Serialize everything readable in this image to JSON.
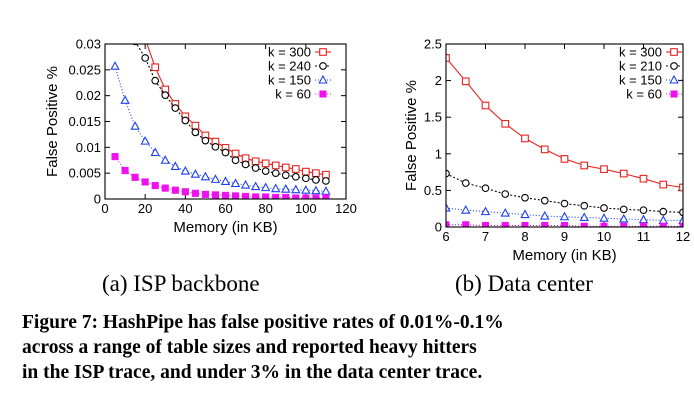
{
  "chart_data": [
    {
      "type": "line",
      "xlabel": "Memory (in KB)",
      "ylabel": "False Positive %",
      "xlim": [
        0,
        120
      ],
      "ylim": [
        0,
        0.03
      ],
      "xticks": [
        "0",
        "20",
        "40",
        "60",
        "80",
        "100",
        "120"
      ],
      "yticks": [
        "0",
        "0.005",
        "0.01",
        "0.015",
        "0.02",
        "0.025",
        "0.03"
      ],
      "legend": "top-right",
      "series": [
        {
          "name": "k = 300",
          "color": "#e8221e",
          "marker": "square-open",
          "dash": "solid",
          "x": [
            20,
            25,
            30,
            35,
            40,
            45,
            50,
            55,
            60,
            65,
            70,
            75,
            80,
            85,
            90,
            95,
            100,
            105,
            110
          ],
          "y": [
            0.031,
            0.0255,
            0.0212,
            0.0184,
            0.016,
            0.0142,
            0.0123,
            0.0111,
            0.0099,
            0.0088,
            0.0079,
            0.0073,
            0.0069,
            0.0065,
            0.0061,
            0.0058,
            0.0053,
            0.005,
            0.0047
          ]
        },
        {
          "name": "k = 240",
          "color": "#000000",
          "marker": "circle-open",
          "dash": "2,2",
          "x": [
            15,
            20,
            25,
            30,
            35,
            40,
            45,
            50,
            55,
            60,
            65,
            70,
            75,
            80,
            85,
            90,
            95,
            100,
            105,
            110
          ],
          "y": [
            0.0305,
            0.0273,
            0.0229,
            0.0201,
            0.0176,
            0.0152,
            0.0129,
            0.0113,
            0.0101,
            0.009,
            0.0075,
            0.0067,
            0.006,
            0.0054,
            0.005,
            0.0046,
            0.0043,
            0.004,
            0.0037,
            0.0035
          ]
        },
        {
          "name": "k = 150",
          "color": "#1c3ff2",
          "marker": "triangle-open",
          "dash": "1,2",
          "x": [
            5,
            10,
            15,
            20,
            25,
            30,
            35,
            40,
            45,
            50,
            55,
            60,
            65,
            70,
            75,
            80,
            85,
            90,
            95,
            100,
            105,
            110
          ],
          "y": [
            0.0257,
            0.0191,
            0.0141,
            0.0112,
            0.009,
            0.0075,
            0.0063,
            0.0054,
            0.0048,
            0.0043,
            0.0038,
            0.0034,
            0.003,
            0.0027,
            0.0024,
            0.0022,
            0.002,
            0.0019,
            0.0018,
            0.0017,
            0.0016,
            0.0015
          ]
        },
        {
          "name": "k = 60",
          "color": "#ee11ee",
          "marker": "square-filled",
          "dash": "1,2",
          "x": [
            5,
            10,
            15,
            20,
            25,
            30,
            35,
            40,
            45,
            50,
            55,
            60,
            65,
            70,
            75,
            80,
            85,
            90,
            95,
            100,
            105,
            110
          ],
          "y": [
            0.0082,
            0.0055,
            0.0042,
            0.0033,
            0.0026,
            0.0021,
            0.0017,
            0.0014,
            0.0011,
            0.0009,
            0.0008,
            0.0007,
            0.0006,
            0.0005,
            0.0004,
            0.0004,
            0.0003,
            0.0003,
            0.0002,
            0.0002,
            0.0002,
            0.0002
          ]
        }
      ]
    },
    {
      "type": "line",
      "xlabel": "Memory (in KB)",
      "ylabel": "False Positive %",
      "xlim": [
        6,
        12
      ],
      "ylim": [
        0,
        2.5
      ],
      "xticks": [
        "6",
        "7",
        "8",
        "9",
        "10",
        "11",
        "12"
      ],
      "yticks": [
        "0",
        "0.5",
        "1",
        "1.5",
        "2",
        "2.5"
      ],
      "legend": "top-right",
      "series": [
        {
          "name": "k = 300",
          "color": "#e8221e",
          "marker": "square-open",
          "dash": "solid",
          "x": [
            6,
            6.5,
            7,
            7.5,
            8,
            8.5,
            9,
            9.5,
            10,
            10.5,
            11,
            11.5,
            12
          ],
          "y": [
            2.31,
            1.99,
            1.66,
            1.41,
            1.21,
            1.06,
            0.93,
            0.84,
            0.79,
            0.73,
            0.66,
            0.58,
            0.54
          ]
        },
        {
          "name": "k = 210",
          "color": "#000000",
          "marker": "circle-open",
          "dash": "2,2",
          "x": [
            6,
            6.5,
            7,
            7.5,
            8,
            8.5,
            9,
            9.5,
            10,
            10.5,
            11,
            11.5,
            12
          ],
          "y": [
            0.73,
            0.6,
            0.53,
            0.45,
            0.4,
            0.36,
            0.32,
            0.29,
            0.26,
            0.24,
            0.23,
            0.21,
            0.2
          ]
        },
        {
          "name": "k = 150",
          "color": "#1c3ff2",
          "marker": "triangle-open",
          "dash": "1,2",
          "x": [
            6,
            6.5,
            7,
            7.5,
            8,
            8.5,
            9,
            9.5,
            10,
            10.5,
            11,
            11.5,
            12
          ],
          "y": [
            0.26,
            0.23,
            0.21,
            0.19,
            0.17,
            0.15,
            0.14,
            0.13,
            0.12,
            0.11,
            0.1,
            0.09,
            0.09
          ]
        },
        {
          "name": "k = 60",
          "color": "#ee11ee",
          "marker": "square-filled",
          "dash": "1,2",
          "x": [
            6,
            6.5,
            7,
            7.5,
            8,
            8.5,
            9,
            9.5,
            10,
            10.5,
            11,
            11.5,
            12
          ],
          "y": [
            0.03,
            0.03,
            0.02,
            0.02,
            0.02,
            0.02,
            0.02,
            0.01,
            0.01,
            0.01,
            0.01,
            0.01,
            0.01
          ]
        }
      ]
    }
  ],
  "subcaptions": [
    "(a) ISP backbone",
    "(b) Data center"
  ],
  "caption": [
    "Figure 7: HashPipe has false positive rates of 0.01%-0.1%",
    "across a range of table sizes and reported heavy hitters",
    "in the ISP trace, and under 3% in the data center trace."
  ]
}
